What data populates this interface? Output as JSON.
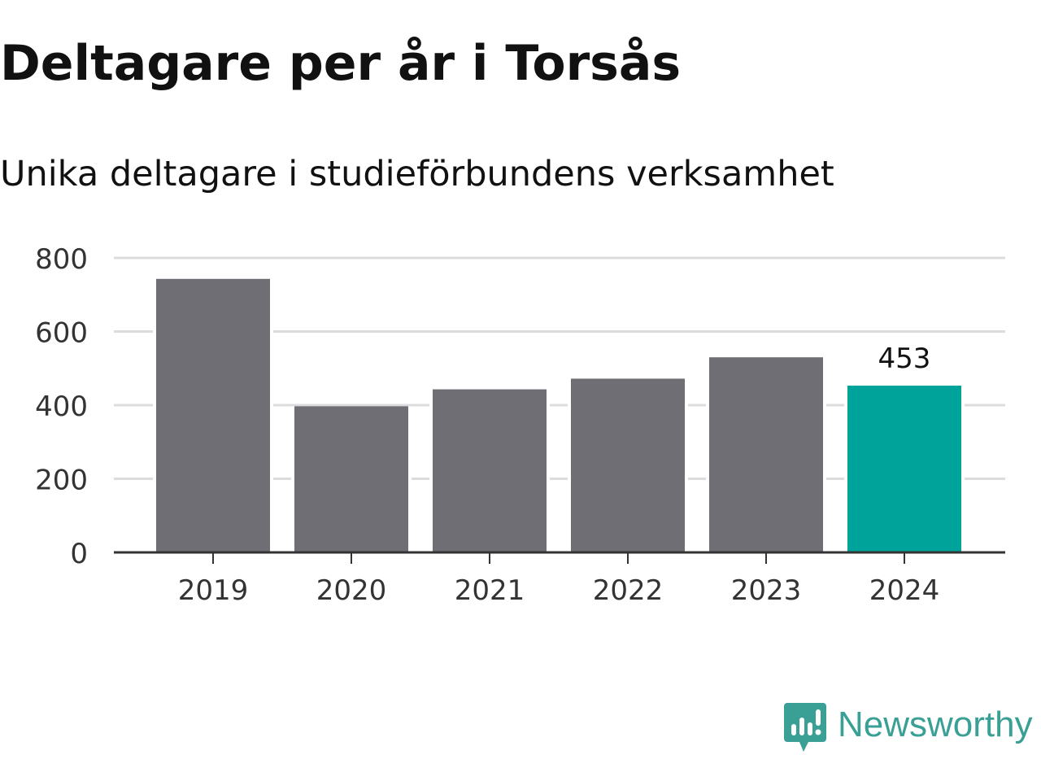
{
  "header": {
    "title": "Deltagare per år i Torsås",
    "subtitle": "Unika deltagare i studieförbundens verksamhet"
  },
  "chart_data": {
    "type": "bar",
    "categories": [
      "2019",
      "2020",
      "2021",
      "2022",
      "2023",
      "2024"
    ],
    "values": [
      743,
      397,
      443,
      472,
      530,
      453
    ],
    "ylim": [
      0,
      800
    ],
    "yticks": [
      0,
      200,
      400,
      600,
      800
    ],
    "grid": true,
    "bar_color": "#6f6e74",
    "highlight_color": "#00a39a",
    "highlight_index": 5,
    "data_labels": [
      {
        "category": "2024",
        "text": "453"
      }
    ]
  },
  "brand": {
    "name": "Newsworthy",
    "icon": "bar-chart-speech-bubble-icon",
    "color": "#3a9f94"
  }
}
